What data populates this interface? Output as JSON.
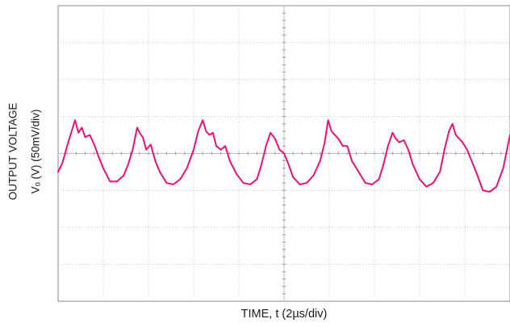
{
  "chart_data": {
    "type": "line",
    "title": "",
    "xlabel": "TIME, t (2µs/div)",
    "ylabel_line1": "OUTPUT VOLTAGE",
    "ylabel_line2": "Vₒ (V) (50mV/div)",
    "grid": "on, 10 x 8 divisions, dotted minor ticks",
    "x_divisions": 10,
    "y_divisions": 8,
    "x_per_div_us": 2,
    "y_per_div_mV": 50,
    "ylim_mV": [
      -200,
      200
    ],
    "xlim_us": [
      0,
      20
    ],
    "series": [
      {
        "color": "#e8117a",
        "x_us": [
          0.0,
          0.2,
          0.4,
          0.6,
          0.75,
          0.9,
          1.05,
          1.2,
          1.4,
          1.6,
          1.8,
          2.0,
          2.3,
          2.6,
          2.9,
          3.1,
          3.3,
          3.5,
          3.6,
          3.75,
          3.9,
          4.1,
          4.3,
          4.5,
          4.8,
          5.1,
          5.4,
          5.7,
          6.0,
          6.2,
          6.4,
          6.55,
          6.7,
          6.85,
          7.0,
          7.2,
          7.4,
          7.6,
          7.9,
          8.2,
          8.5,
          8.8,
          9.0,
          9.2,
          9.4,
          9.6,
          9.8,
          10.0,
          10.2,
          10.4,
          10.7,
          11.0,
          11.3,
          11.6,
          11.8,
          11.95,
          12.1,
          12.25,
          12.4,
          12.6,
          12.8,
          13.0,
          13.3,
          13.6,
          13.9,
          14.2,
          14.4,
          14.6,
          14.8,
          14.95,
          15.1,
          15.3,
          15.5,
          15.7,
          16.0,
          16.3,
          16.6,
          16.9,
          17.1,
          17.3,
          17.45,
          17.6,
          17.75,
          17.9,
          18.1,
          18.3,
          18.5,
          18.8,
          19.1,
          19.4,
          19.7,
          20.0
        ],
        "y_mV": [
          -25,
          -12,
          10,
          30,
          45,
          28,
          35,
          22,
          25,
          12,
          -5,
          -20,
          -38,
          -38,
          -30,
          -15,
          5,
          35,
          28,
          22,
          5,
          12,
          -10,
          -25,
          -40,
          -42,
          -35,
          -20,
          5,
          30,
          45,
          30,
          25,
          28,
          10,
          5,
          10,
          -10,
          -28,
          -40,
          -42,
          -35,
          -15,
          10,
          28,
          20,
          5,
          0,
          -15,
          -32,
          -42,
          -40,
          -30,
          -10,
          15,
          45,
          30,
          25,
          20,
          10,
          10,
          -10,
          -25,
          -40,
          -42,
          -35,
          -15,
          10,
          28,
          20,
          15,
          18,
          5,
          -15,
          -35,
          -45,
          -40,
          -25,
          5,
          30,
          40,
          25,
          20,
          15,
          5,
          -10,
          -25,
          -50,
          -52,
          -45,
          -20,
          25
        ]
      }
    ]
  }
}
